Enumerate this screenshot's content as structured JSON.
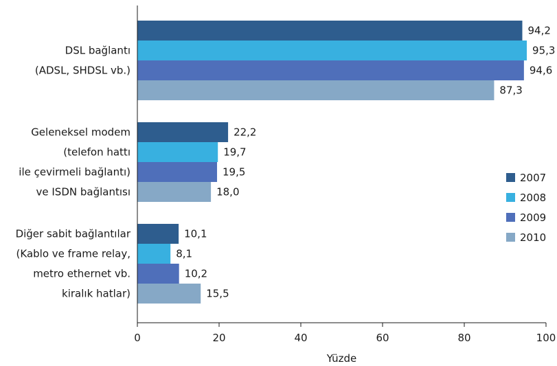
{
  "chart_data": {
    "type": "bar",
    "orientation": "horizontal",
    "categories": [
      [
        "DSL bağlantı",
        "(ADSL, SHDSL vb.)"
      ],
      [
        "Geleneksel modem",
        "(telefon hattı",
        "ile çevirmeli bağlantı)",
        "ve ISDN bağlantısı"
      ],
      [
        "Diğer sabit bağlantılar",
        "(Kablo ve frame relay,",
        "metro ethernet vb.",
        "kiralık hatlar)"
      ]
    ],
    "series": [
      {
        "name": "2007",
        "color": "#2e5d8e",
        "values": [
          94.2,
          22.2,
          10.1
        ],
        "labels": [
          "94,2",
          "22,2",
          "10,1"
        ]
      },
      {
        "name": "2008",
        "color": "#38b0e0",
        "values": [
          95.3,
          19.7,
          8.1
        ],
        "labels": [
          "95,3",
          "19,7",
          "8,1"
        ]
      },
      {
        "name": "2009",
        "color": "#4f6fba",
        "values": [
          94.6,
          19.5,
          10.2
        ],
        "labels": [
          "94,6",
          "19,5",
          "10,2"
        ]
      },
      {
        "name": "2010",
        "color": "#86a8c6",
        "values": [
          87.3,
          18.0,
          15.5
        ],
        "labels": [
          "87,3",
          "18,0",
          "15,5"
        ]
      }
    ],
    "xlabel": "Yüzde",
    "ylabel": "",
    "xlim": [
      0,
      100
    ],
    "xticks": [
      0,
      20,
      40,
      60,
      80,
      100
    ],
    "grid": false,
    "legend_position": "right"
  }
}
